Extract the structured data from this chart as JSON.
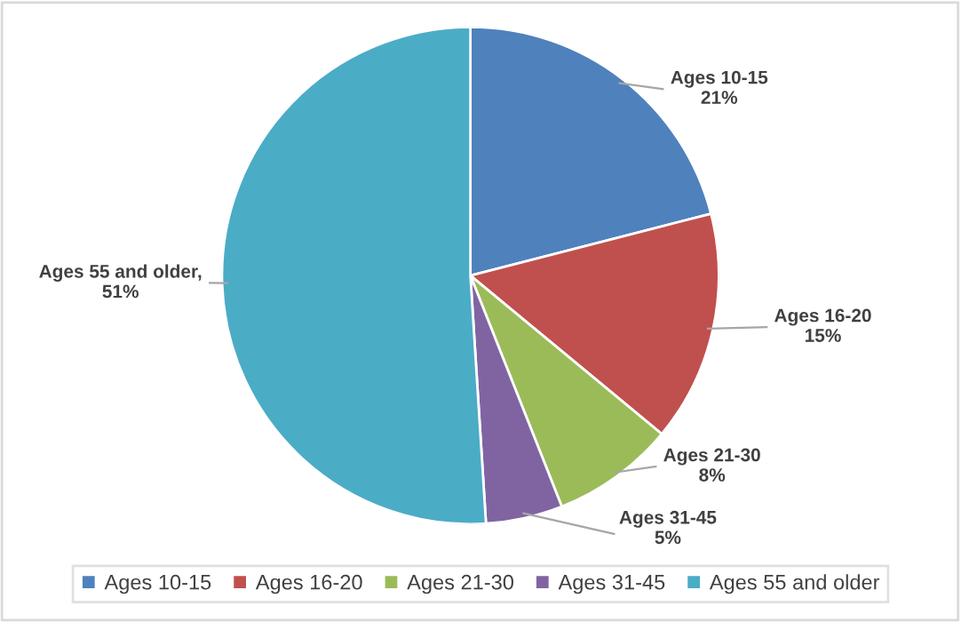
{
  "chart_data": {
    "type": "pie",
    "categories": [
      "Ages 10-15",
      "Ages 16-20",
      "Ages 21-30",
      "Ages 31-45",
      "Ages 55 and older"
    ],
    "values": [
      21,
      15,
      8,
      5,
      51
    ],
    "colors": [
      "#4f81bd",
      "#c0504d",
      "#9bbb59",
      "#8064a2",
      "#4bacc6"
    ],
    "value_labels": [
      "Ages 10-15\n21%",
      "Ages 16-20\n15%",
      "Ages 21-30\n8%",
      "Ages 31-45\n5%",
      "Ages 55 and older,\n51%"
    ],
    "legend": "bottom"
  }
}
